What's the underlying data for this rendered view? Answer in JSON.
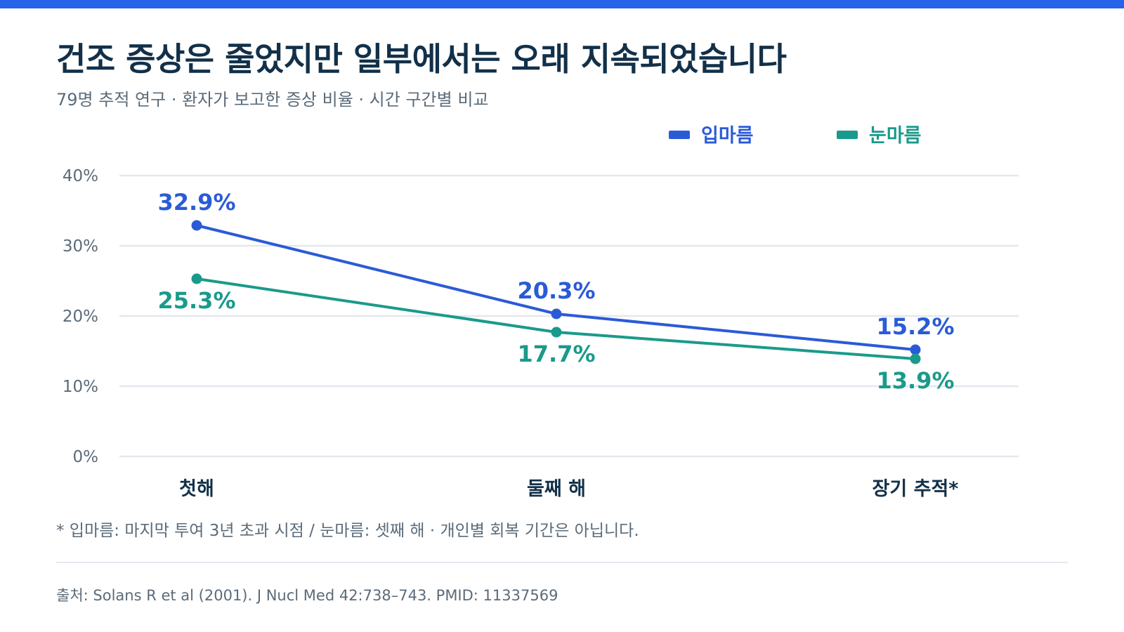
{
  "header": {
    "title": "건조 증상은 줄었지만 일부에서는 오래 지속되었습니다",
    "subtitle": "79명 추적 연구 · 환자가 보고한 증상 비율 · 시간 구간별 비교"
  },
  "colors": {
    "accent_bar": "#2563eb",
    "dry_mouth": "#2a5bd7",
    "dry_eye": "#1a9a8a",
    "title": "#123049",
    "muted": "#5b6b79",
    "grid": "#e3e8ee"
  },
  "chart_data": {
    "type": "line",
    "categories": [
      "첫해",
      "둘째 해",
      "장기 추적*"
    ],
    "series": [
      {
        "name": "입마름",
        "values": [
          32.9,
          20.3,
          15.2
        ],
        "color": "#2a5bd7",
        "labels": [
          "32.9%",
          "20.3%",
          "15.2%"
        ]
      },
      {
        "name": "눈마름",
        "values": [
          25.3,
          17.7,
          13.9
        ],
        "color": "#1a9a8a",
        "labels": [
          "25.3%",
          "17.7%",
          "13.9%"
        ]
      }
    ],
    "y_ticks": [
      "0%",
      "10%",
      "20%",
      "30%",
      "40%"
    ],
    "ylim": [
      0,
      40
    ],
    "grid": true,
    "legend_position": "top-right"
  },
  "footnote": "* 입마름: 마지막 투여 3년 초과 시점 / 눈마름: 셋째 해 · 개인별 회복 기간은 아닙니다.",
  "source": "출처: Solans R et al (2001). J Nucl Med 42:738–743. PMID: 11337569"
}
